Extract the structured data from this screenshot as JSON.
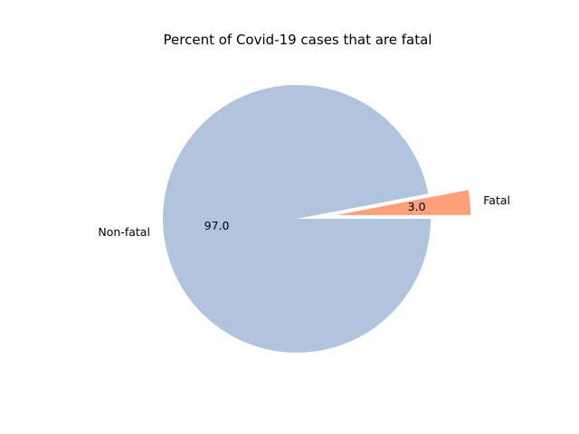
{
  "chart_data": {
    "type": "pie",
    "title": "Percent of Covid-19 cases that are fatal",
    "slices": [
      {
        "label": "Fatal",
        "value": 3.0,
        "pct_label": "3.0",
        "color": "#ffa07a",
        "exploded": true
      },
      {
        "label": "Non-fatal",
        "value": 97.0,
        "pct_label": "97.0",
        "color": "#b0c4de",
        "exploded": false
      }
    ],
    "start_angle_deg": 0,
    "direction": "counterclockwise"
  }
}
